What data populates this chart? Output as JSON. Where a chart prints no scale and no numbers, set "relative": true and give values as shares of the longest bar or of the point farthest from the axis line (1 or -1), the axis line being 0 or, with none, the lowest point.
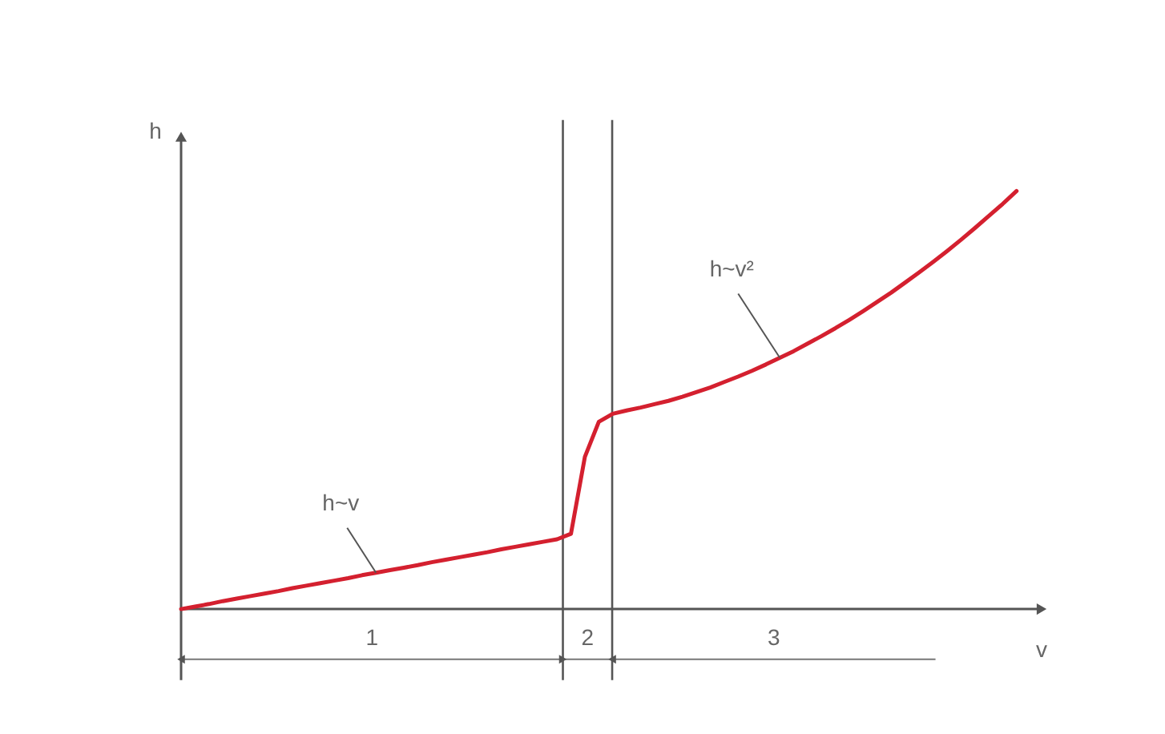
{
  "chart_data": {
    "type": "line",
    "relative": true,
    "xlabel": "v",
    "ylabel": "h",
    "tick_labels": false,
    "categories": [
      null,
      null,
      null,
      null,
      null,
      null,
      null,
      null,
      null,
      null,
      null,
      null,
      null,
      null,
      null,
      null,
      null,
      null,
      null,
      null,
      null,
      null,
      null,
      null,
      null,
      null,
      null,
      null,
      null,
      null,
      null,
      null,
      null,
      null,
      null,
      null,
      null,
      null,
      null,
      null,
      null,
      null,
      null,
      null,
      null,
      null,
      null,
      null,
      null,
      null,
      null,
      null,
      null,
      null,
      null,
      null,
      null,
      null,
      null,
      null,
      null
    ],
    "series": [
      {
        "color": "#d4202f",
        "values": [
          0,
          0.006,
          0.012,
          0.019,
          0.025,
          0.031,
          0.037,
          0.043,
          0.05,
          0.056,
          0.062,
          0.068,
          0.074,
          0.081,
          0.087,
          0.093,
          0.099,
          0.105,
          0.112,
          0.118,
          0.124,
          0.13,
          0.136,
          0.143,
          0.149,
          0.155,
          0.161,
          0.167,
          0.18,
          0.364,
          0.448,
          0.467,
          0.475,
          0.482,
          0.49,
          0.498,
          0.508,
          0.519,
          0.53,
          0.543,
          0.556,
          0.57,
          0.585,
          0.601,
          0.617,
          0.635,
          0.653,
          0.672,
          0.692,
          0.713,
          0.735,
          0.757,
          0.781,
          0.805,
          0.83,
          0.856,
          0.883,
          0.911,
          0.94,
          0.969,
          1
        ]
      }
    ],
    "annotations": [
      "h~v",
      "h~v²",
      "1",
      "2",
      "3"
    ]
  }
}
